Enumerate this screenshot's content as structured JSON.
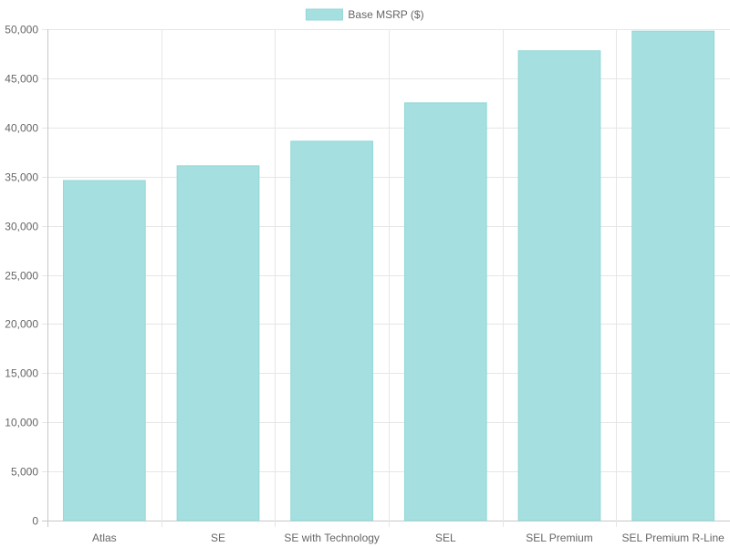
{
  "chart_data": {
    "type": "bar",
    "categories": [
      "Atlas",
      "SE",
      "SE with Technology",
      "SEL",
      "SEL Premium",
      "SEL Premium R-Line"
    ],
    "series": [
      {
        "name": "Base MSRP ($)",
        "values": [
          34600,
          36100,
          38600,
          42500,
          47800,
          49800
        ],
        "color": "#a5dfdf",
        "border_color": "#93d8d8"
      }
    ],
    "ylim": [
      0,
      50000
    ],
    "yticks": [
      0,
      5000,
      10000,
      15000,
      20000,
      25000,
      30000,
      35000,
      40000,
      45000,
      50000
    ],
    "ytick_labels": [
      "0",
      "5,000",
      "10,000",
      "15,000",
      "20,000",
      "25,000",
      "30,000",
      "35,000",
      "40,000",
      "45,000",
      "50,000"
    ],
    "grid": true,
    "legend_position": "top-center",
    "title": "",
    "xlabel": "",
    "ylabel": ""
  }
}
